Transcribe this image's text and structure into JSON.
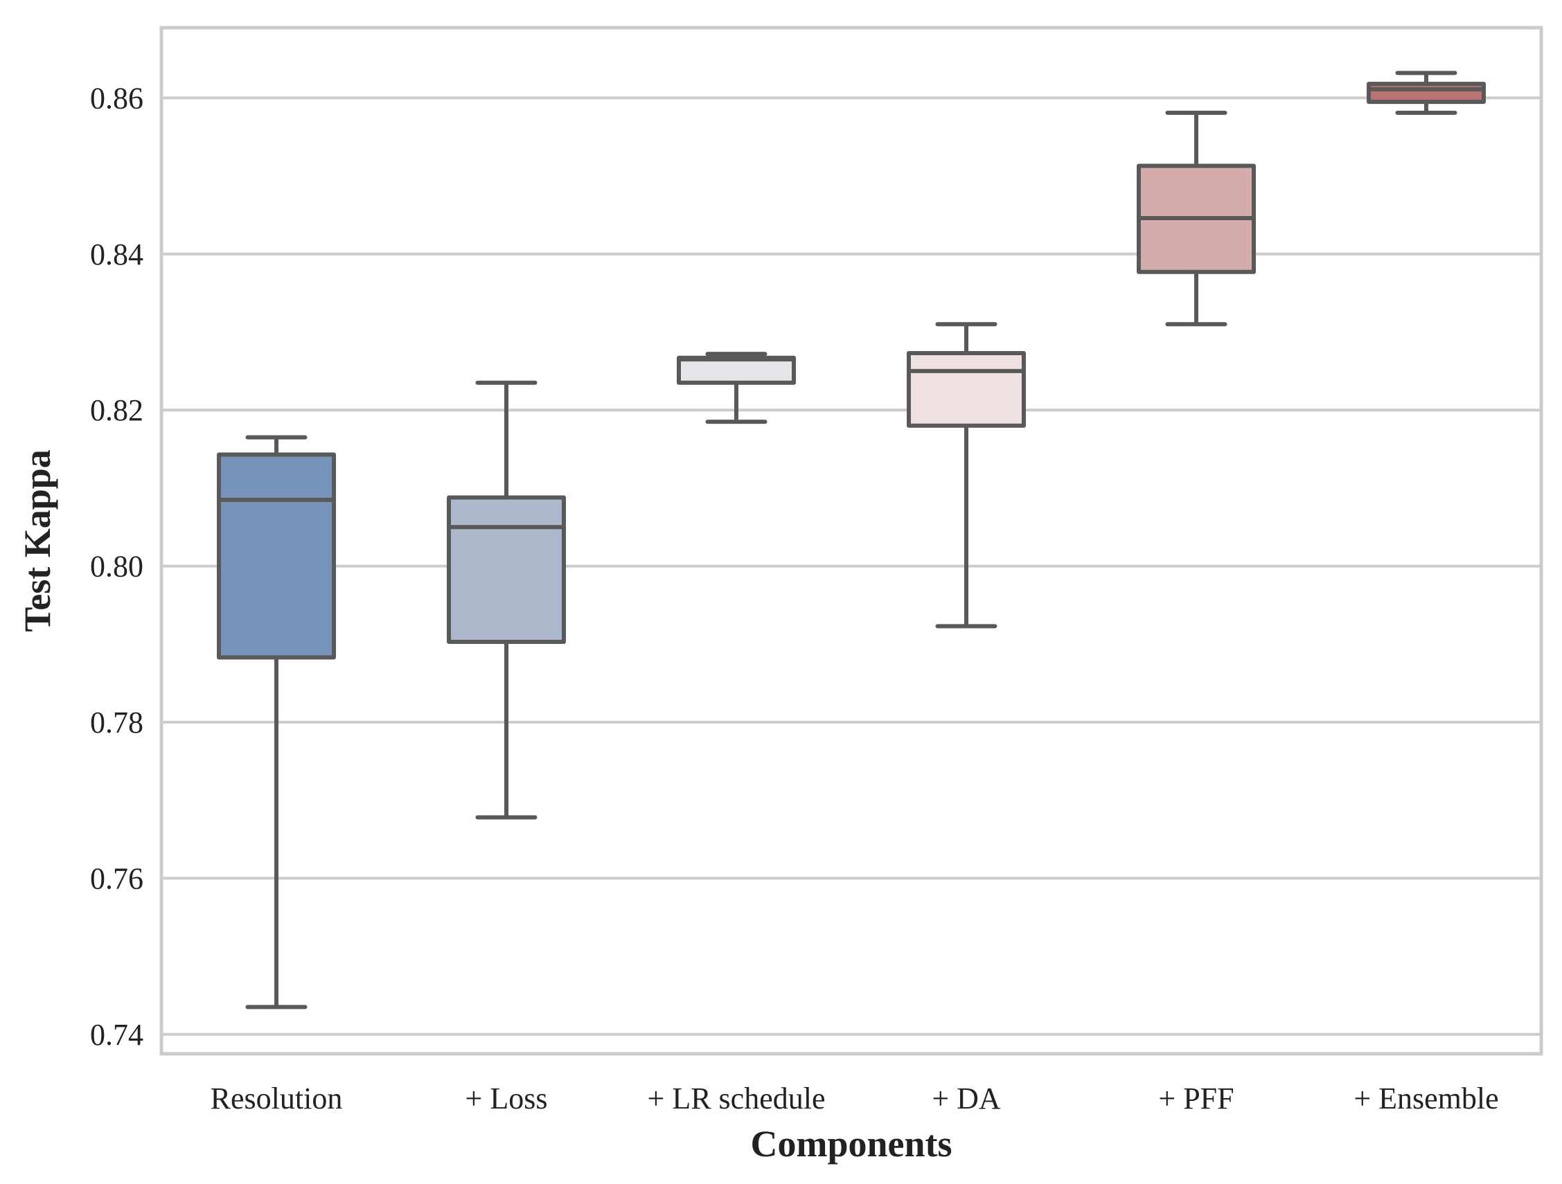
{
  "chart_data": {
    "type": "box",
    "title": "",
    "xlabel": "Components",
    "ylabel": "Test Kappa",
    "ylim": [
      0.7375,
      0.869
    ],
    "yticks": [
      0.74,
      0.76,
      0.78,
      0.8,
      0.82,
      0.84,
      0.86
    ],
    "ytick_labels": [
      "0.74",
      "0.76",
      "0.78",
      "0.80",
      "0.82",
      "0.84",
      "0.86"
    ],
    "grid": "horizontal",
    "categories": [
      "Resolution",
      "+ Loss",
      "+ LR schedule",
      "+ DA",
      "+ PFF",
      "+ Ensemble"
    ],
    "boxes": [
      {
        "name": "Resolution",
        "whisker_low": 0.7435,
        "q1": 0.7883,
        "median": 0.8085,
        "q3": 0.8143,
        "whisker_high": 0.8165,
        "color": "#7893ba"
      },
      {
        "name": "+ Loss",
        "whisker_low": 0.7678,
        "q1": 0.7903,
        "median": 0.805,
        "q3": 0.8088,
        "whisker_high": 0.8235,
        "color": "#adb8cc"
      },
      {
        "name": "+ LR schedule",
        "whisker_low": 0.8185,
        "q1": 0.8235,
        "median": 0.8265,
        "q3": 0.8267,
        "whisker_high": 0.8272,
        "color": "#e5e5ea"
      },
      {
        "name": "+ DA",
        "whisker_low": 0.7923,
        "q1": 0.818,
        "median": 0.825,
        "q3": 0.8273,
        "whisker_high": 0.831,
        "color": "#f0e1e1"
      },
      {
        "name": "+ PFF",
        "whisker_low": 0.831,
        "q1": 0.8377,
        "median": 0.8446,
        "q3": 0.8513,
        "whisker_high": 0.8581,
        "color": "#d4acab"
      },
      {
        "name": "+ Ensemble",
        "whisker_low": 0.8581,
        "q1": 0.8595,
        "median": 0.8611,
        "q3": 0.8618,
        "whisker_high": 0.8632,
        "color": "#b97375"
      }
    ],
    "line_color": "#595959",
    "grid_color": "#cccccc",
    "frame_color": "#cccccc"
  }
}
